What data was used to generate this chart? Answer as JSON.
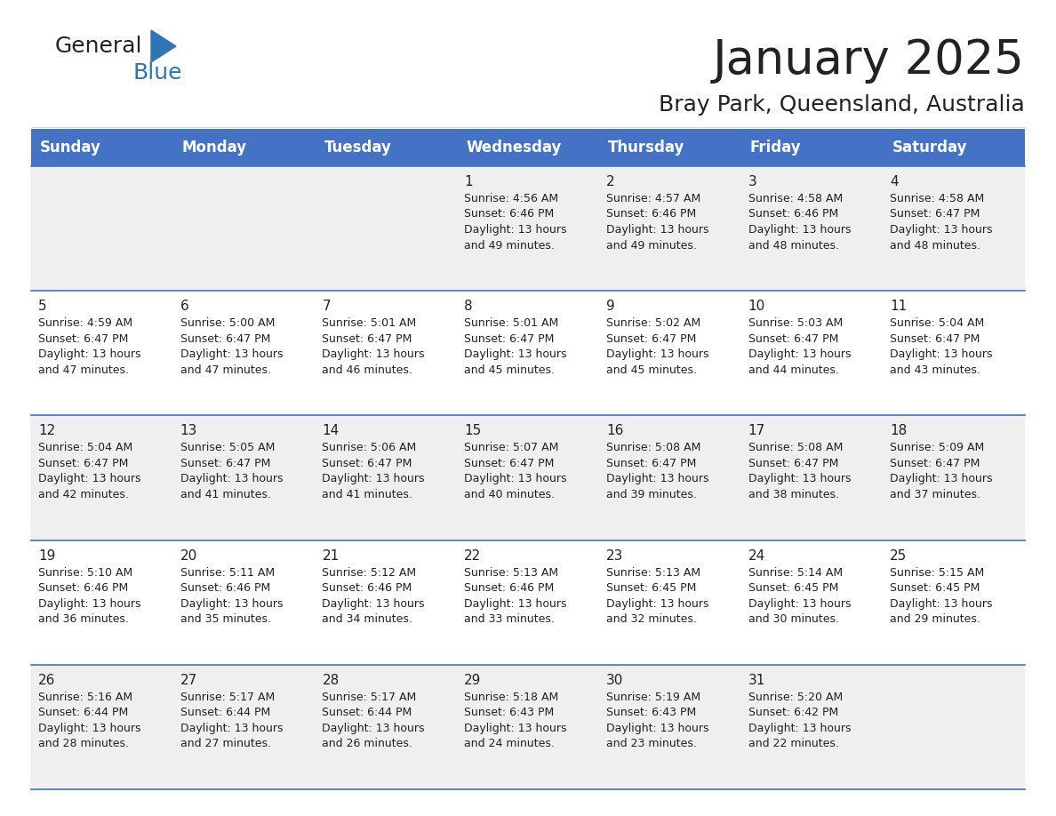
{
  "title": "January 2025",
  "subtitle": "Bray Park, Queensland, Australia",
  "header_color": "#4472C4",
  "header_text_color": "#FFFFFF",
  "days_of_week": [
    "Sunday",
    "Monday",
    "Tuesday",
    "Wednesday",
    "Thursday",
    "Friday",
    "Saturday"
  ],
  "bg_color": "#FFFFFF",
  "row_color_even": "#EFEFEF",
  "row_color_odd": "#FFFFFF",
  "cell_border_color": "#4472C4",
  "text_color": "#222222",
  "calendar": [
    [
      {
        "day": null,
        "info": null
      },
      {
        "day": null,
        "info": null
      },
      {
        "day": null,
        "info": null
      },
      {
        "day": "1",
        "info": "Sunrise: 4:56 AM\nSunset: 6:46 PM\nDaylight: 13 hours\nand 49 minutes."
      },
      {
        "day": "2",
        "info": "Sunrise: 4:57 AM\nSunset: 6:46 PM\nDaylight: 13 hours\nand 49 minutes."
      },
      {
        "day": "3",
        "info": "Sunrise: 4:58 AM\nSunset: 6:46 PM\nDaylight: 13 hours\nand 48 minutes."
      },
      {
        "day": "4",
        "info": "Sunrise: 4:58 AM\nSunset: 6:47 PM\nDaylight: 13 hours\nand 48 minutes."
      }
    ],
    [
      {
        "day": "5",
        "info": "Sunrise: 4:59 AM\nSunset: 6:47 PM\nDaylight: 13 hours\nand 47 minutes."
      },
      {
        "day": "6",
        "info": "Sunrise: 5:00 AM\nSunset: 6:47 PM\nDaylight: 13 hours\nand 47 minutes."
      },
      {
        "day": "7",
        "info": "Sunrise: 5:01 AM\nSunset: 6:47 PM\nDaylight: 13 hours\nand 46 minutes."
      },
      {
        "day": "8",
        "info": "Sunrise: 5:01 AM\nSunset: 6:47 PM\nDaylight: 13 hours\nand 45 minutes."
      },
      {
        "day": "9",
        "info": "Sunrise: 5:02 AM\nSunset: 6:47 PM\nDaylight: 13 hours\nand 45 minutes."
      },
      {
        "day": "10",
        "info": "Sunrise: 5:03 AM\nSunset: 6:47 PM\nDaylight: 13 hours\nand 44 minutes."
      },
      {
        "day": "11",
        "info": "Sunrise: 5:04 AM\nSunset: 6:47 PM\nDaylight: 13 hours\nand 43 minutes."
      }
    ],
    [
      {
        "day": "12",
        "info": "Sunrise: 5:04 AM\nSunset: 6:47 PM\nDaylight: 13 hours\nand 42 minutes."
      },
      {
        "day": "13",
        "info": "Sunrise: 5:05 AM\nSunset: 6:47 PM\nDaylight: 13 hours\nand 41 minutes."
      },
      {
        "day": "14",
        "info": "Sunrise: 5:06 AM\nSunset: 6:47 PM\nDaylight: 13 hours\nand 41 minutes."
      },
      {
        "day": "15",
        "info": "Sunrise: 5:07 AM\nSunset: 6:47 PM\nDaylight: 13 hours\nand 40 minutes."
      },
      {
        "day": "16",
        "info": "Sunrise: 5:08 AM\nSunset: 6:47 PM\nDaylight: 13 hours\nand 39 minutes."
      },
      {
        "day": "17",
        "info": "Sunrise: 5:08 AM\nSunset: 6:47 PM\nDaylight: 13 hours\nand 38 minutes."
      },
      {
        "day": "18",
        "info": "Sunrise: 5:09 AM\nSunset: 6:47 PM\nDaylight: 13 hours\nand 37 minutes."
      }
    ],
    [
      {
        "day": "19",
        "info": "Sunrise: 5:10 AM\nSunset: 6:46 PM\nDaylight: 13 hours\nand 36 minutes."
      },
      {
        "day": "20",
        "info": "Sunrise: 5:11 AM\nSunset: 6:46 PM\nDaylight: 13 hours\nand 35 minutes."
      },
      {
        "day": "21",
        "info": "Sunrise: 5:12 AM\nSunset: 6:46 PM\nDaylight: 13 hours\nand 34 minutes."
      },
      {
        "day": "22",
        "info": "Sunrise: 5:13 AM\nSunset: 6:46 PM\nDaylight: 13 hours\nand 33 minutes."
      },
      {
        "day": "23",
        "info": "Sunrise: 5:13 AM\nSunset: 6:45 PM\nDaylight: 13 hours\nand 32 minutes."
      },
      {
        "day": "24",
        "info": "Sunrise: 5:14 AM\nSunset: 6:45 PM\nDaylight: 13 hours\nand 30 minutes."
      },
      {
        "day": "25",
        "info": "Sunrise: 5:15 AM\nSunset: 6:45 PM\nDaylight: 13 hours\nand 29 minutes."
      }
    ],
    [
      {
        "day": "26",
        "info": "Sunrise: 5:16 AM\nSunset: 6:44 PM\nDaylight: 13 hours\nand 28 minutes."
      },
      {
        "day": "27",
        "info": "Sunrise: 5:17 AM\nSunset: 6:44 PM\nDaylight: 13 hours\nand 27 minutes."
      },
      {
        "day": "28",
        "info": "Sunrise: 5:17 AM\nSunset: 6:44 PM\nDaylight: 13 hours\nand 26 minutes."
      },
      {
        "day": "29",
        "info": "Sunrise: 5:18 AM\nSunset: 6:43 PM\nDaylight: 13 hours\nand 24 minutes."
      },
      {
        "day": "30",
        "info": "Sunrise: 5:19 AM\nSunset: 6:43 PM\nDaylight: 13 hours\nand 23 minutes."
      },
      {
        "day": "31",
        "info": "Sunrise: 5:20 AM\nSunset: 6:42 PM\nDaylight: 13 hours\nand 22 minutes."
      },
      {
        "day": null,
        "info": null
      }
    ]
  ],
  "logo_general_color": "#222222",
  "logo_blue_color": "#2E75B6",
  "logo_triangle_color": "#2E75B6"
}
